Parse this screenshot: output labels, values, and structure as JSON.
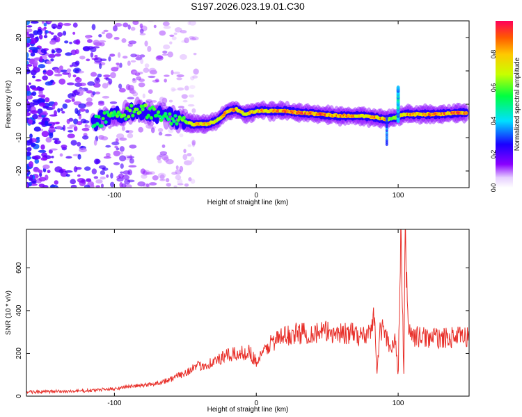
{
  "figure_title": "S197.2026.023.19.01.C30",
  "chart_data": [
    {
      "type": "heatmap",
      "title": "",
      "xlabel": "Height of straight line (km)",
      "ylabel": "Frequency (Hz)",
      "xlim": [
        -162,
        150
      ],
      "ylim": [
        -25,
        25
      ],
      "xticks": [
        -100,
        0,
        100
      ],
      "yticks": [
        -20,
        -10,
        0,
        10,
        20
      ],
      "grid": false,
      "colorbar": {
        "label": "Normalized spectral amplitude",
        "range": [
          0,
          1
        ],
        "ticks": [
          0.0,
          0.2,
          0.4,
          0.6,
          0.8
        ],
        "colormap": [
          "#ffffff",
          "#8a00ff",
          "#1a00ff",
          "#00e0ff",
          "#00ff40",
          "#c8ff00",
          "#ffc800",
          "#ff5a00",
          "#ff005a"
        ]
      },
      "ridge": {
        "description": "dominant spectral ridge (frequency vs height)",
        "x": [
          -115,
          -105,
          -95,
          -85,
          -75,
          -65,
          -55,
          -45,
          -35,
          -28,
          -20,
          -14,
          -8,
          0,
          10,
          20,
          30,
          45,
          60,
          75,
          85,
          92,
          98,
          105,
          115,
          125,
          135,
          148
        ],
        "freq": [
          -5.5,
          -4,
          -3,
          -2,
          -2,
          -3.5,
          -4.5,
          -6,
          -6,
          -5,
          -2,
          -1.5,
          -3,
          -2,
          -2,
          -2,
          -2.5,
          -3,
          -3.5,
          -3.5,
          -4,
          -4.5,
          -4,
          -3,
          -3,
          -3,
          -2.8,
          -2.5
        ],
        "amplitude": [
          0.35,
          0.4,
          0.45,
          0.5,
          0.45,
          0.35,
          0.4,
          0.75,
          0.8,
          0.7,
          0.85,
          0.9,
          0.7,
          0.85,
          0.9,
          0.95,
          0.95,
          0.95,
          0.9,
          0.8,
          0.85,
          0.8,
          0.5,
          0.8,
          0.85,
          0.9,
          0.95,
          0.9
        ]
      },
      "spike": {
        "x": 100,
        "freq_range": [
          -5,
          5
        ],
        "amplitude": 0.4
      }
    },
    {
      "type": "line",
      "title": "",
      "xlabel": "Height of straight line (km)",
      "ylabel": "SNR (10 * v/v)",
      "xlim": [
        -162,
        150
      ],
      "ylim": [
        0,
        780
      ],
      "xticks": [
        -100,
        0,
        100
      ],
      "yticks": [
        0,
        200,
        400,
        600
      ],
      "grid": false,
      "series": [
        {
          "name": "SNR",
          "color": "#e8302a",
          "x": [
            -162,
            -150,
            -140,
            -130,
            -120,
            -110,
            -100,
            -90,
            -80,
            -70,
            -60,
            -50,
            -45,
            -40,
            -30,
            -20,
            -10,
            -5,
            0,
            5,
            10,
            20,
            30,
            40,
            50,
            60,
            70,
            75,
            80,
            83,
            85,
            87,
            90,
            95,
            98,
            100,
            102,
            104,
            105,
            107,
            110,
            120,
            130,
            140,
            150
          ],
          "values": [
            20,
            20,
            22,
            22,
            25,
            30,
            35,
            45,
            50,
            60,
            80,
            110,
            130,
            140,
            160,
            190,
            200,
            210,
            160,
            200,
            250,
            280,
            295,
            295,
            300,
            295,
            290,
            280,
            300,
            400,
            95,
            300,
            320,
            200,
            280,
            90,
            780,
            90,
            780,
            330,
            280,
            275,
            270,
            275,
            280
          ]
        }
      ]
    }
  ]
}
